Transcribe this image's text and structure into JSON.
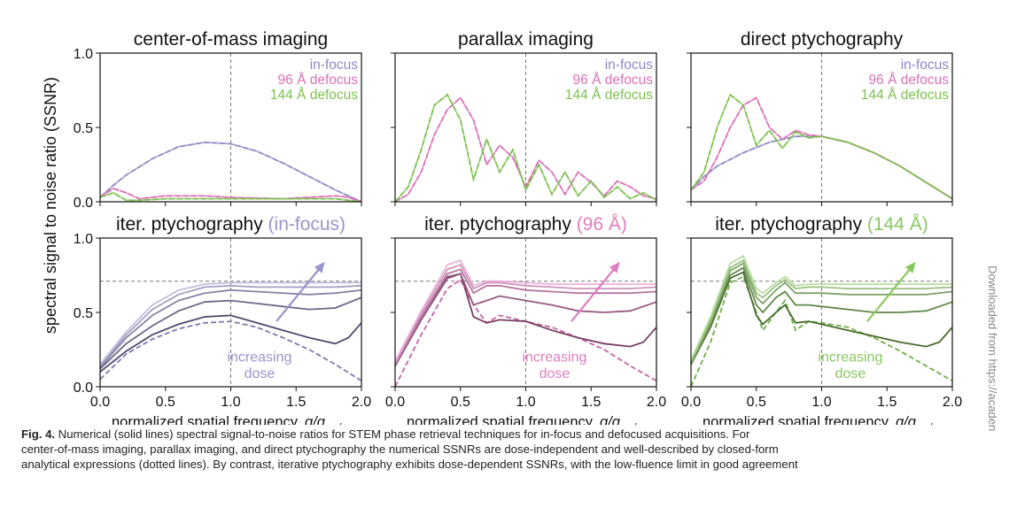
{
  "figure": {
    "ylabel": "spectral signal to noise ratio (SSNR)",
    "xlabel_text": "normalized spatial frequency, ",
    "xlabel_q": "q/q",
    "xlabel_sub": "probe",
    "colors": {
      "in_focus": "#8c89c4",
      "d96": "#dd6fb8",
      "d144": "#7cc24e"
    },
    "increasing_label": "increasing",
    "dose_label": "dose"
  },
  "caption": {
    "label": "Fig. 4.",
    "line1": "Numerical (solid lines) spectral signal-to-noise ratios for STEM phase retrieval techniques for in-focus and defocused acquisitions. For",
    "line2": "center-of-mass imaging, parallax imaging, and direct ptychography the numerical SSNRs are dose-independent and well-described by closed-form",
    "line3": "analytical expressions (dotted lines). By contrast, iterative ptychography exhibits dose-dependent SSNRs, with the low-fluence limit in good agreement"
  },
  "side_note": "Downloaded from https://acaden",
  "chart_data": [
    {
      "type": "line",
      "title": "center-of-mass imaging",
      "xlim": [
        0,
        2
      ],
      "ylim": [
        0,
        1
      ],
      "vline_x": 1,
      "legend": [
        "in-focus",
        "96 Å defocus",
        "144 Å defocus"
      ],
      "legend_position": "top-right",
      "series": [
        {
          "name": "in-focus",
          "x": [
            0,
            0.1,
            0.2,
            0.4,
            0.6,
            0.8,
            1.0,
            1.2,
            1.4,
            1.6,
            1.8,
            2.0
          ],
          "y": [
            0.03,
            0.11,
            0.18,
            0.29,
            0.37,
            0.4,
            0.39,
            0.34,
            0.26,
            0.17,
            0.08,
            0.0
          ]
        },
        {
          "name": "96 Å defocus",
          "x": [
            0,
            0.1,
            0.2,
            0.3,
            0.5,
            0.8,
            1.0,
            1.4,
            1.8,
            1.9,
            2.0
          ],
          "y": [
            0.03,
            0.09,
            0.06,
            0.02,
            0.04,
            0.04,
            0.03,
            0.02,
            0.04,
            0.03,
            0.0
          ]
        },
        {
          "name": "144 Å defocus",
          "x": [
            0,
            0.1,
            0.2,
            0.3,
            0.5,
            0.8,
            1.0,
            1.4,
            1.8,
            2.0
          ],
          "y": [
            0.03,
            0.06,
            0.01,
            0.01,
            0.02,
            0.02,
            0.02,
            0.02,
            0.02,
            0.0
          ]
        }
      ]
    },
    {
      "type": "line",
      "title": "parallax imaging",
      "xlim": [
        0,
        2
      ],
      "ylim": [
        0,
        1
      ],
      "vline_x": 1,
      "legend": [
        "in-focus",
        "96 Å defocus",
        "144 Å defocus"
      ],
      "legend_position": "top-right",
      "series": [
        {
          "name": "96 Å defocus",
          "x": [
            0,
            0.1,
            0.2,
            0.3,
            0.4,
            0.5,
            0.6,
            0.7,
            0.8,
            0.9,
            1.0,
            1.1,
            1.2,
            1.3,
            1.4,
            1.5,
            1.6,
            1.7,
            1.8,
            1.9,
            2.0
          ],
          "y": [
            0.0,
            0.05,
            0.2,
            0.45,
            0.62,
            0.7,
            0.55,
            0.25,
            0.38,
            0.3,
            0.1,
            0.28,
            0.2,
            0.05,
            0.2,
            0.13,
            0.04,
            0.14,
            0.1,
            0.04,
            0.02
          ]
        },
        {
          "name": "144 Å defocus",
          "x": [
            0,
            0.1,
            0.2,
            0.3,
            0.4,
            0.5,
            0.6,
            0.7,
            0.8,
            0.9,
            1.0,
            1.1,
            1.2,
            1.3,
            1.4,
            1.5,
            1.6,
            1.7,
            1.8,
            1.9,
            2.0
          ],
          "y": [
            0.0,
            0.1,
            0.35,
            0.65,
            0.72,
            0.55,
            0.15,
            0.42,
            0.2,
            0.35,
            0.08,
            0.25,
            0.05,
            0.2,
            0.04,
            0.14,
            0.03,
            0.1,
            0.02,
            0.06,
            0.01
          ]
        }
      ]
    },
    {
      "type": "line",
      "title": "direct ptychography",
      "xlim": [
        0,
        2
      ],
      "ylim": [
        0,
        1
      ],
      "vline_x": 1,
      "legend": [
        "in-focus",
        "96 Å defocus",
        "144 Å defocus"
      ],
      "legend_position": "top-right",
      "series": [
        {
          "name": "in-focus",
          "x": [
            0,
            0.1,
            0.2,
            0.4,
            0.6,
            0.8,
            1.0,
            1.2,
            1.4,
            1.6,
            1.8,
            2.0
          ],
          "y": [
            0.08,
            0.17,
            0.24,
            0.33,
            0.4,
            0.44,
            0.44,
            0.4,
            0.33,
            0.24,
            0.13,
            0.02
          ]
        },
        {
          "name": "96 Å defocus",
          "x": [
            0,
            0.1,
            0.2,
            0.3,
            0.4,
            0.5,
            0.6,
            0.7,
            0.8,
            0.9,
            1.0,
            1.2,
            1.4,
            1.6,
            1.8,
            2.0
          ],
          "y": [
            0.08,
            0.14,
            0.3,
            0.5,
            0.65,
            0.7,
            0.5,
            0.42,
            0.48,
            0.45,
            0.44,
            0.4,
            0.33,
            0.24,
            0.13,
            0.02
          ]
        },
        {
          "name": "144 Å defocus",
          "x": [
            0,
            0.1,
            0.2,
            0.3,
            0.4,
            0.5,
            0.6,
            0.7,
            0.8,
            0.9,
            1.0,
            1.2,
            1.4,
            1.6,
            1.8,
            2.0
          ],
          "y": [
            0.08,
            0.2,
            0.5,
            0.72,
            0.65,
            0.38,
            0.48,
            0.36,
            0.47,
            0.43,
            0.44,
            0.4,
            0.33,
            0.24,
            0.13,
            0.02
          ]
        }
      ]
    },
    {
      "type": "line",
      "title": "iter. ptychography",
      "title_suffix": "(in-focus)",
      "xlim": [
        0,
        2
      ],
      "ylim": [
        0,
        1
      ],
      "vline_x": 1,
      "hline_y": 0.71,
      "annotation": "increasing dose",
      "series": [
        {
          "name": "",
          "x": [
            0,
            0.2,
            0.4,
            0.6,
            0.8,
            1.0,
            1.2,
            1.4,
            1.6,
            1.8,
            2.0
          ],
          "y": [
            0.05,
            0.22,
            0.32,
            0.39,
            0.43,
            0.44,
            0.4,
            0.33,
            0.25,
            0.15,
            0.04
          ],
          "dashed": true
        },
        {
          "name": "",
          "x": [
            0,
            0.2,
            0.4,
            0.6,
            0.8,
            1.0,
            1.2,
            1.4,
            1.6,
            1.8,
            1.9,
            2.0
          ],
          "y": [
            0.1,
            0.24,
            0.35,
            0.42,
            0.47,
            0.48,
            0.43,
            0.38,
            0.33,
            0.29,
            0.33,
            0.43
          ]
        },
        {
          "name": "",
          "x": [
            0,
            0.2,
            0.4,
            0.6,
            0.8,
            1.0,
            1.2,
            1.4,
            1.6,
            1.8,
            2.0
          ],
          "y": [
            0.12,
            0.29,
            0.41,
            0.51,
            0.57,
            0.58,
            0.56,
            0.54,
            0.52,
            0.53,
            0.6
          ]
        },
        {
          "name": "",
          "x": [
            0,
            0.2,
            0.4,
            0.6,
            0.8,
            1.0,
            1.2,
            1.4,
            1.6,
            1.8,
            2.0
          ],
          "y": [
            0.13,
            0.33,
            0.48,
            0.58,
            0.63,
            0.65,
            0.64,
            0.63,
            0.62,
            0.63,
            0.65
          ]
        },
        {
          "name": "",
          "x": [
            0,
            0.2,
            0.4,
            0.6,
            0.8,
            1.0,
            1.2,
            1.4,
            1.6,
            1.8,
            2.0
          ],
          "y": [
            0.14,
            0.35,
            0.52,
            0.62,
            0.67,
            0.68,
            0.67,
            0.67,
            0.67,
            0.67,
            0.68
          ]
        },
        {
          "name": "",
          "x": [
            0,
            0.2,
            0.4,
            0.6,
            0.8,
            1.0,
            1.2,
            1.4,
            1.6,
            1.8,
            2.0
          ],
          "y": [
            0.15,
            0.37,
            0.55,
            0.65,
            0.69,
            0.7,
            0.7,
            0.7,
            0.7,
            0.7,
            0.7
          ]
        }
      ]
    },
    {
      "type": "line",
      "title": "iter. ptychography",
      "title_suffix": "(96 Å)",
      "xlim": [
        0,
        2
      ],
      "ylim": [
        0,
        1
      ],
      "vline_x": 1,
      "hline_y": 0.71,
      "annotation": "increasing dose",
      "series": [
        {
          "name": "",
          "x": [
            0,
            0.2,
            0.4,
            0.5,
            0.6,
            0.7,
            0.8,
            1.0,
            1.2,
            1.4,
            1.6,
            1.8,
            2.0
          ],
          "y": [
            0.0,
            0.35,
            0.66,
            0.72,
            0.55,
            0.43,
            0.48,
            0.44,
            0.4,
            0.33,
            0.25,
            0.14,
            0.04
          ],
          "dashed": true
        },
        {
          "name": "",
          "x": [
            0,
            0.2,
            0.4,
            0.5,
            0.6,
            0.7,
            0.8,
            1.0,
            1.2,
            1.4,
            1.6,
            1.8,
            1.9,
            2.0
          ],
          "y": [
            0.14,
            0.45,
            0.73,
            0.76,
            0.47,
            0.43,
            0.45,
            0.44,
            0.38,
            0.33,
            0.29,
            0.27,
            0.3,
            0.4
          ]
        },
        {
          "name": "",
          "x": [
            0,
            0.2,
            0.4,
            0.5,
            0.6,
            0.7,
            0.8,
            1.0,
            1.2,
            1.4,
            1.6,
            1.8,
            2.0
          ],
          "y": [
            0.14,
            0.45,
            0.74,
            0.76,
            0.55,
            0.58,
            0.61,
            0.58,
            0.55,
            0.51,
            0.5,
            0.51,
            0.57
          ]
        },
        {
          "name": "",
          "x": [
            0,
            0.2,
            0.4,
            0.5,
            0.6,
            0.7,
            0.8,
            1.0,
            1.2,
            1.4,
            1.6,
            1.8,
            2.0
          ],
          "y": [
            0.15,
            0.47,
            0.76,
            0.79,
            0.63,
            0.68,
            0.68,
            0.65,
            0.64,
            0.63,
            0.63,
            0.63,
            0.64
          ]
        },
        {
          "name": "",
          "x": [
            0,
            0.2,
            0.4,
            0.5,
            0.6,
            0.7,
            0.8,
            1.0,
            1.2,
            1.4,
            1.6,
            1.8,
            2.0
          ],
          "y": [
            0.16,
            0.49,
            0.79,
            0.82,
            0.66,
            0.7,
            0.7,
            0.68,
            0.67,
            0.66,
            0.66,
            0.66,
            0.67
          ]
        },
        {
          "name": "",
          "x": [
            0,
            0.2,
            0.4,
            0.5,
            0.6,
            0.7,
            0.8,
            1.0,
            1.2,
            1.4,
            1.6,
            1.8,
            2.0
          ],
          "y": [
            0.17,
            0.51,
            0.82,
            0.85,
            0.68,
            0.71,
            0.71,
            0.7,
            0.69,
            0.69,
            0.69,
            0.69,
            0.69
          ]
        }
      ]
    },
    {
      "type": "line",
      "title": "iter. ptychography",
      "title_suffix": "(144 Å)",
      "xlim": [
        0,
        2
      ],
      "ylim": [
        0,
        1
      ],
      "vline_x": 1,
      "hline_y": 0.71,
      "annotation": "increasing dose",
      "series": [
        {
          "name": "",
          "x": [
            0,
            0.15,
            0.3,
            0.4,
            0.5,
            0.55,
            0.65,
            0.72,
            0.8,
            0.9,
            1.0,
            1.2,
            1.4,
            1.6,
            1.8,
            2.0
          ],
          "y": [
            0.0,
            0.3,
            0.7,
            0.74,
            0.5,
            0.38,
            0.5,
            0.58,
            0.38,
            0.44,
            0.43,
            0.4,
            0.33,
            0.24,
            0.14,
            0.04
          ],
          "dashed": true
        },
        {
          "name": "",
          "x": [
            0,
            0.15,
            0.3,
            0.4,
            0.5,
            0.55,
            0.65,
            0.72,
            0.8,
            0.9,
            1.0,
            1.2,
            1.4,
            1.6,
            1.8,
            1.9,
            2.0
          ],
          "y": [
            0.15,
            0.4,
            0.73,
            0.77,
            0.48,
            0.42,
            0.5,
            0.55,
            0.43,
            0.44,
            0.42,
            0.38,
            0.34,
            0.3,
            0.27,
            0.3,
            0.4
          ]
        },
        {
          "name": "",
          "x": [
            0,
            0.15,
            0.3,
            0.4,
            0.5,
            0.55,
            0.65,
            0.72,
            0.8,
            0.9,
            1.0,
            1.2,
            1.4,
            1.6,
            1.8,
            2.0
          ],
          "y": [
            0.15,
            0.41,
            0.75,
            0.8,
            0.55,
            0.5,
            0.6,
            0.64,
            0.55,
            0.55,
            0.54,
            0.52,
            0.5,
            0.5,
            0.51,
            0.57
          ]
        },
        {
          "name": "",
          "x": [
            0,
            0.15,
            0.3,
            0.4,
            0.5,
            0.55,
            0.65,
            0.72,
            0.8,
            0.9,
            1.0,
            1.2,
            1.4,
            1.6,
            1.8,
            2.0
          ],
          "y": [
            0.16,
            0.43,
            0.78,
            0.83,
            0.6,
            0.56,
            0.65,
            0.7,
            0.63,
            0.63,
            0.63,
            0.62,
            0.62,
            0.62,
            0.62,
            0.64
          ]
        },
        {
          "name": "",
          "x": [
            0,
            0.15,
            0.3,
            0.4,
            0.5,
            0.55,
            0.65,
            0.72,
            0.8,
            0.9,
            1.0,
            1.2,
            1.4,
            1.6,
            1.8,
            2.0
          ],
          "y": [
            0.17,
            0.45,
            0.8,
            0.85,
            0.63,
            0.6,
            0.68,
            0.72,
            0.66,
            0.67,
            0.67,
            0.66,
            0.66,
            0.66,
            0.66,
            0.67
          ]
        },
        {
          "name": "",
          "x": [
            0,
            0.15,
            0.3,
            0.4,
            0.5,
            0.55,
            0.65,
            0.72,
            0.8,
            0.9,
            1.0,
            1.2,
            1.4,
            1.6,
            1.8,
            2.0
          ],
          "y": [
            0.18,
            0.47,
            0.83,
            0.88,
            0.66,
            0.63,
            0.7,
            0.74,
            0.68,
            0.69,
            0.69,
            0.69,
            0.69,
            0.69,
            0.69,
            0.69
          ]
        }
      ]
    }
  ]
}
